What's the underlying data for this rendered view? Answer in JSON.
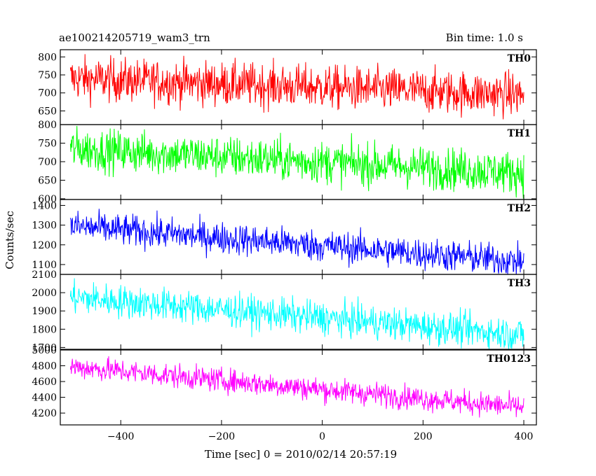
{
  "chart_data": {
    "type": "line",
    "title": "ae100214205719_wam3_trn",
    "subtitle": "Bin time: 1.0 s",
    "xlabel": "Time [sec] 0 = 2010/02/14 20:57:19",
    "ylabel": "Counts/sec",
    "xlim": [
      -520,
      425
    ],
    "x_ticks": [
      -400,
      -200,
      0,
      200,
      400
    ],
    "x_start": -500,
    "x_end": 400,
    "x_step": 1,
    "grid": false,
    "legend": "none",
    "panels": [
      {
        "name": "TH0",
        "color": "#ff0000",
        "ylim": [
          612,
          820
        ],
        "y_ticks": [
          650,
          700,
          750,
          800
        ],
        "y_tick_labels": [
          "650",
          "700",
          "750",
          "800"
        ],
        "trend_start": 740,
        "trend_end": 695,
        "noise": 30
      },
      {
        "name": "TH1",
        "color": "#00ff00",
        "ylim": [
          598,
          800
        ],
        "y_ticks": [
          600,
          650,
          700,
          750,
          800
        ],
        "y_tick_labels": [
          "600",
          "650",
          "700",
          "750",
          "800"
        ],
        "trend_start": 735,
        "trend_end": 670,
        "noise": 28
      },
      {
        "name": "TH2",
        "color": "#0000ff",
        "ylim": [
          1050,
          1430
        ],
        "y_ticks": [
          1100,
          1200,
          1300,
          1400
        ],
        "y_tick_labels": [
          "1100",
          "1200",
          "1300",
          "1400"
        ],
        "trend_start": 1295,
        "trend_end": 1115,
        "noise": 40
      },
      {
        "name": "TH3",
        "color": "#00ffff",
        "ylim": [
          1690,
          2100
        ],
        "y_ticks": [
          1700,
          1800,
          1900,
          2000,
          2100
        ],
        "y_tick_labels": [
          "1700",
          "1800",
          "1900",
          "2000",
          "2100"
        ],
        "trend_start": 1975,
        "trend_end": 1770,
        "noise": 45
      },
      {
        "name": "TH0123",
        "color": "#ff00ff",
        "ylim": [
          4050,
          5000
        ],
        "y_ticks": [
          4200,
          4400,
          4600,
          4800,
          5000
        ],
        "y_tick_labels": [
          "4200",
          "4400",
          "4600",
          "4800",
          "5000"
        ],
        "trend_start": 4790,
        "trend_end": 4270,
        "noise": 75
      }
    ]
  }
}
